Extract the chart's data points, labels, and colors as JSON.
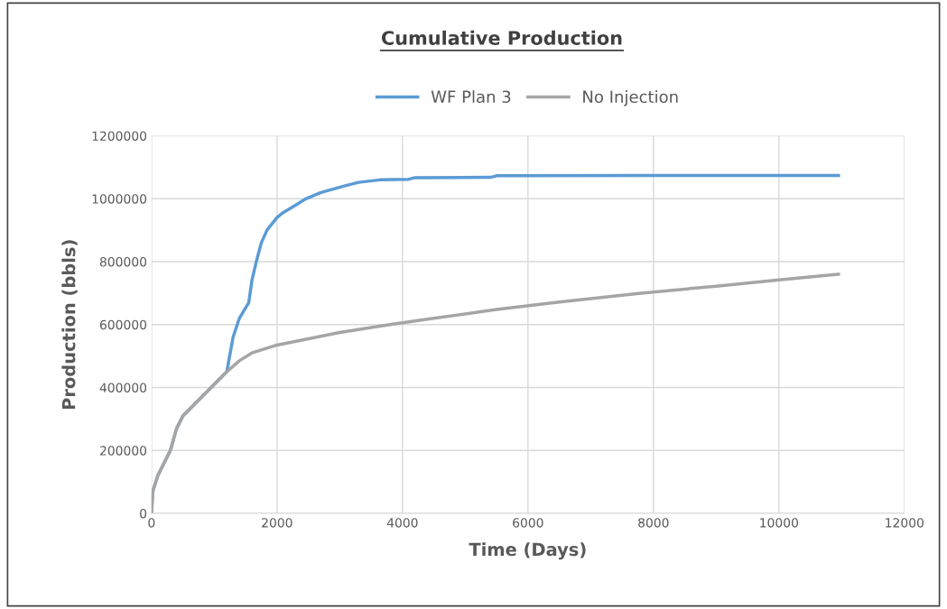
{
  "chart_data": {
    "type": "line",
    "title": "Cumulative Production",
    "xlabel": "Time (Days)",
    "ylabel": "Production (bbls)",
    "xlim": [
      0,
      12000
    ],
    "xticks": [
      0,
      2000,
      4000,
      6000,
      8000,
      10000,
      12000
    ],
    "ylim": [
      0,
      1200000
    ],
    "yticks": [
      0,
      200000,
      400000,
      600000,
      800000,
      1000000,
      1200000
    ],
    "grid": true,
    "legend": "top",
    "marker": "none",
    "line_style": "solid",
    "series": [
      {
        "name": "WF Plan 3",
        "color": "#5b9bd5",
        "x": [
          0,
          20,
          100,
          250,
          300,
          400,
          500,
          800,
          1200,
          1300,
          1400,
          1550,
          1600,
          1670,
          1750,
          1840,
          2000,
          2090,
          2300,
          2460,
          2700,
          3060,
          3300,
          3640,
          4100,
          4200,
          5400,
          5500,
          8000,
          10950
        ],
        "values": [
          0,
          70000,
          120000,
          180000,
          200000,
          270000,
          310000,
          370000,
          450000,
          560000,
          620000,
          670000,
          740000,
          800000,
          860000,
          900000,
          940000,
          955000,
          980000,
          1000000,
          1020000,
          1040000,
          1052000,
          1060000,
          1062000,
          1067000,
          1068000,
          1073000,
          1074000,
          1074000
        ]
      },
      {
        "name": "No Injection",
        "color": "#a5a5a5",
        "x": [
          0,
          20,
          100,
          250,
          300,
          400,
          500,
          800,
          1200,
          1400,
          1600,
          2000,
          2500,
          3000,
          3800,
          4500,
          5500,
          6500,
          7800,
          9000,
          10000,
          10950
        ],
        "values": [
          0,
          70000,
          120000,
          180000,
          200000,
          270000,
          310000,
          370000,
          450000,
          485000,
          510000,
          535000,
          555000,
          575000,
          600000,
          620000,
          648000,
          672000,
          700000,
          722000,
          742000,
          760000
        ]
      }
    ]
  }
}
